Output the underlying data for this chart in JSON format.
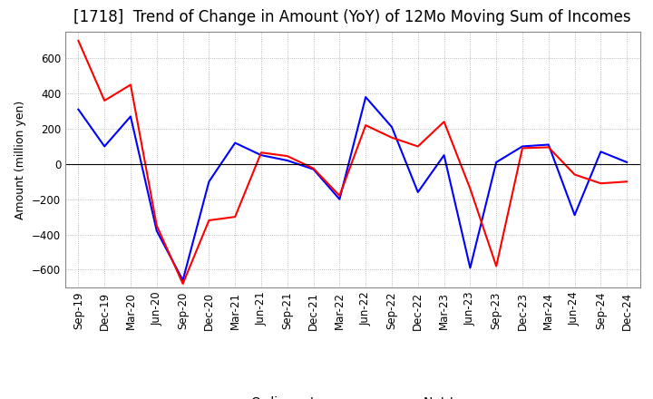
{
  "title": "[1718]  Trend of Change in Amount (YoY) of 12Mo Moving Sum of Incomes",
  "ylabel": "Amount (million yen)",
  "x_labels": [
    "Sep-19",
    "Dec-19",
    "Mar-20",
    "Jun-20",
    "Sep-20",
    "Dec-20",
    "Mar-21",
    "Jun-21",
    "Sep-21",
    "Dec-21",
    "Mar-22",
    "Jun-22",
    "Sep-22",
    "Dec-22",
    "Mar-23",
    "Jun-23",
    "Sep-23",
    "Dec-23",
    "Mar-24",
    "Jun-24",
    "Sep-24",
    "Dec-24"
  ],
  "ordinary_income": [
    310,
    100,
    270,
    -380,
    -660,
    -100,
    120,
    50,
    20,
    -30,
    -200,
    380,
    210,
    -160,
    50,
    -590,
    10,
    100,
    110,
    -290,
    70,
    10
  ],
  "net_income": [
    700,
    360,
    450,
    -350,
    -680,
    -320,
    -300,
    65,
    45,
    -25,
    -180,
    220,
    150,
    100,
    240,
    -140,
    -580,
    90,
    95,
    -60,
    -110,
    -100
  ],
  "ordinary_color": "#0000ff",
  "net_color": "#ff0000",
  "ylim": [
    -700,
    750
  ],
  "yticks": [
    -600,
    -400,
    -200,
    0,
    200,
    400,
    600
  ],
  "grid_color": "#aaaaaa",
  "background": "#ffffff",
  "title_fontsize": 12,
  "label_fontsize": 9,
  "tick_fontsize": 8.5
}
